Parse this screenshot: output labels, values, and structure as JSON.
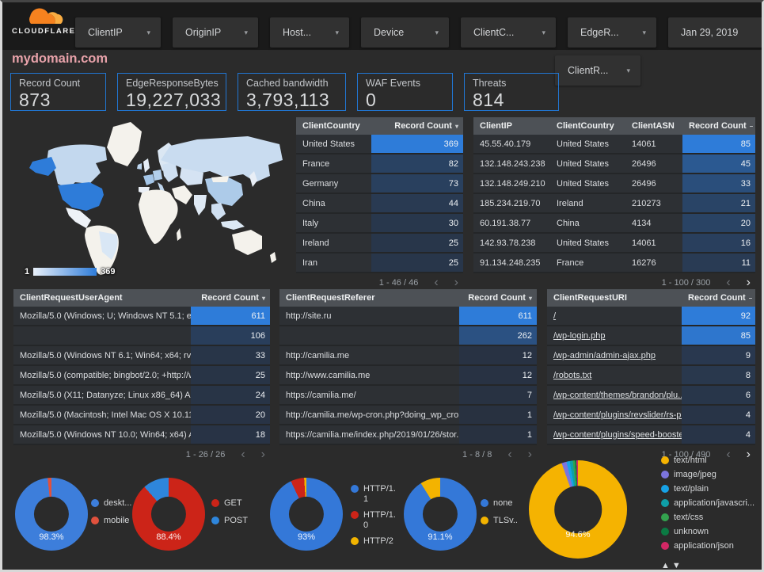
{
  "header": {
    "brand": "CLOUDFLARE",
    "filters": [
      "ClientIP",
      "OriginIP",
      "Host...",
      "Device",
      "ClientC...",
      "EdgeR...",
      "Jan 29, 2019"
    ],
    "filters_row2": [
      "ClientR..."
    ]
  },
  "title": "mydomain.com",
  "icons": {
    "caret": "▾",
    "prev": "‹",
    "next": "›",
    "sort_desc": "▾",
    "sort_dash": "–"
  },
  "accent_colors": {
    "card_border": "#2176d2",
    "heatmap_low": "#283140",
    "heatmap_high": "#2e7cd9"
  },
  "scorecards": [
    {
      "label": "Record Count",
      "value": "873"
    },
    {
      "label": "EdgeResponseBytes",
      "value": "19,227,033"
    },
    {
      "label": "Cached bandwidth",
      "value": "3,793,113"
    },
    {
      "label": "WAF Events",
      "value": "0"
    },
    {
      "label": "Threats",
      "value": "814"
    }
  ],
  "map": {
    "legend_min": "1",
    "legend_max": "369",
    "land_color": "#f4f2ec",
    "country_colors": {
      "usa": "#2e7cd9",
      "alaska": "#2e7cd9",
      "canada": "#c3d8ee",
      "greenland": "#f4f2ec",
      "mexico": "#eef2f7",
      "brazil": "#d9e7f5",
      "south-america": "#f4f2ec",
      "scandinavia": "#dbe7f3",
      "uk": "#e4ecf6",
      "ireland": "#bcd5ee",
      "france": "#a5c6e8",
      "germany": "#b3cfeb",
      "spain": "#e9eef5",
      "italy": "#bed6ee",
      "east-europe": "#cfe0f2",
      "russia": "#c9dcf0",
      "kazakh": "#d5e3f3",
      "china": "#adcbe9",
      "mongolia": "#f4f2ec",
      "middle-east": "#f4f2ec",
      "india": "#dfe9f4",
      "se-asia": "#cfdff1",
      "indonesia": "#dce8f4",
      "japan": "#e8eef6",
      "africa": "#f4f2ec",
      "madagascar": "#f4f2ec",
      "australia": "#f4f2ec",
      "new-zealand": "#f4f2ec"
    }
  },
  "tables": [
    {
      "name": "client-country-table",
      "columns": [
        "ClientCountry",
        "Record Count"
      ],
      "sort": "▾",
      "max": 369,
      "rows": [
        [
          "United States",
          369
        ],
        [
          "France",
          82
        ],
        [
          "Germany",
          73
        ],
        [
          "China",
          44
        ],
        [
          "Italy",
          30
        ],
        [
          "Ireland",
          25
        ],
        [
          "Iran",
          25
        ]
      ],
      "pagination": "1 - 46 / 46",
      "prev_active": false,
      "next_active": false
    },
    {
      "name": "client-ip-table",
      "columns": [
        "ClientIP",
        "ClientCountry",
        "ClientASN",
        "Record Count"
      ],
      "sort": "–",
      "max": 85,
      "rows": [
        [
          "45.55.40.179",
          "United States",
          "14061",
          85
        ],
        [
          "132.148.243.238",
          "United States",
          "26496",
          45
        ],
        [
          "132.148.249.210",
          "United States",
          "26496",
          33
        ],
        [
          "185.234.219.70",
          "Ireland",
          "210273",
          21
        ],
        [
          "60.191.38.77",
          "China",
          "4134",
          20
        ],
        [
          "142.93.78.238",
          "United States",
          "14061",
          16
        ],
        [
          "91.134.248.235",
          "France",
          "16276",
          11
        ]
      ],
      "pagination": "1 - 100 / 300",
      "prev_active": false,
      "next_active": true
    },
    {
      "name": "user-agent-table",
      "columns": [
        "ClientRequestUserAgent",
        "Record Count"
      ],
      "sort": "▾",
      "max": 611,
      "rows": [
        [
          "Mozilla/5.0 (Windows; U; Windows NT 5.1; en-U...",
          611
        ],
        [
          "",
          106
        ],
        [
          "Mozilla/5.0 (Windows NT 6.1; Win64; x64; rv:64...",
          33
        ],
        [
          "Mozilla/5.0 (compatible; bingbot/2.0; +http://w...",
          25
        ],
        [
          "Mozilla/5.0 (X11; Datanyze; Linux x86_64) Appl...",
          24
        ],
        [
          "Mozilla/5.0 (Macintosh; Intel Mac OS X 10.11; r...",
          20
        ],
        [
          "Mozilla/5.0 (Windows NT 10.0; Win64; x64) App...",
          18
        ]
      ],
      "pagination": "1 - 26 / 26",
      "prev_active": false,
      "next_active": false
    },
    {
      "name": "referer-table",
      "columns": [
        "ClientRequestReferer",
        "Record Count"
      ],
      "sort": "▾",
      "max": 611,
      "rows": [
        [
          "http://site.ru",
          611
        ],
        [
          "",
          262
        ],
        [
          "http://camilia.me",
          12
        ],
        [
          "http://www.camilia.me",
          12
        ],
        [
          "https://camilia.me/",
          7
        ],
        [
          "http://camilia.me/wp-cron.php?doing_wp_cron...",
          1
        ],
        [
          "https://camilia.me/index.php/2019/01/26/stor...",
          1
        ]
      ],
      "pagination": "1 - 8 / 8",
      "prev_active": false,
      "next_active": false
    },
    {
      "name": "uri-table",
      "links": true,
      "columns": [
        "ClientRequestURI",
        "Record Count"
      ],
      "sort": "–",
      "max": 92,
      "rows": [
        [
          "/",
          92
        ],
        [
          "/wp-login.php",
          85
        ],
        [
          "/wp-admin/admin-ajax.php",
          9
        ],
        [
          "/robots.txt",
          8
        ],
        [
          "/wp-content/themes/brandon/plu...",
          6
        ],
        [
          "/wp-content/plugins/revslider/rs-p...",
          4
        ],
        [
          "/wp-content/plugins/speed-booste...",
          4
        ]
      ],
      "pagination": "1 - 100 / 490",
      "prev_active": false,
      "next_active": true
    }
  ],
  "donuts": [
    {
      "name": "device-donut",
      "label": "98.3%",
      "slices": [
        {
          "name": "deskt...",
          "value": 98.3,
          "color": "#3d7edb"
        },
        {
          "name": "mobile",
          "value": 1.7,
          "color": "#e0513d"
        }
      ]
    },
    {
      "name": "method-donut",
      "label": "88.4%",
      "slices": [
        {
          "name": "GET",
          "value": 88.4,
          "color": "#cc2418"
        },
        {
          "name": "POST",
          "value": 11.6,
          "color": "#2e86dc"
        }
      ]
    },
    {
      "name": "http-version-donut",
      "label": "93%",
      "slices": [
        {
          "name": "HTTP/1.1",
          "value": 93,
          "color": "#3478d8"
        },
        {
          "name": "HTTP/1.0",
          "value": 6,
          "color": "#cc2418"
        },
        {
          "name": "HTTP/2",
          "value": 1,
          "color": "#f2b400"
        }
      ]
    },
    {
      "name": "tls-donut",
      "label": "91.1%",
      "slices": [
        {
          "name": "none",
          "value": 91.1,
          "color": "#3478d8"
        },
        {
          "name": "TLSv..",
          "value": 8.9,
          "color": "#f3b300"
        }
      ]
    },
    {
      "name": "content-type-donut",
      "label": "94.6%",
      "arrows": "▲▼",
      "slices": [
        {
          "name": "text/html",
          "value": 94.6,
          "color": "#f5b301"
        },
        {
          "name": "image/jpeg",
          "value": 1.6,
          "color": "#7b74dd"
        },
        {
          "name": "text/plain",
          "value": 1.1,
          "color": "#17a2e6"
        },
        {
          "name": "application/javascri...",
          "value": 1.0,
          "color": "#0f9fa8"
        },
        {
          "name": "text/css",
          "value": 0.7,
          "color": "#33a24e"
        },
        {
          "name": "unknown",
          "value": 0.5,
          "color": "#0b7a43"
        },
        {
          "name": "application/json",
          "value": 0.5,
          "color": "#d22765"
        }
      ]
    }
  ]
}
